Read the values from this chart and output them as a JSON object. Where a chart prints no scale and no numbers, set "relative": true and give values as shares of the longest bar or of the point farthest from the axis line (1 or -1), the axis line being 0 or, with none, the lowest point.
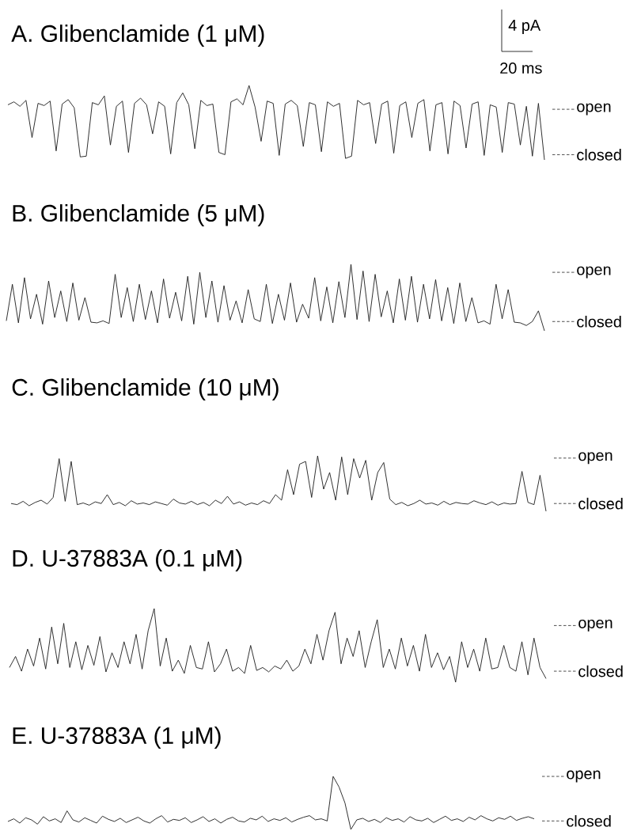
{
  "chart_data": [
    {
      "type": "line",
      "title": "A. Glibenclamide (1 μM)",
      "relative": true,
      "color": "#1a1a1a",
      "categories": [
        null,
        null,
        null,
        null,
        null,
        null,
        null,
        null,
        null,
        null,
        null,
        null,
        null,
        null,
        null,
        null,
        null,
        null,
        null,
        null,
        null,
        null,
        null,
        null,
        null,
        null,
        null,
        null,
        null,
        null,
        null,
        null,
        null,
        null,
        null,
        null,
        null,
        null,
        null,
        null,
        null,
        null,
        null,
        null,
        null,
        null,
        null,
        null,
        null,
        null,
        null,
        null,
        null,
        null,
        null,
        null,
        null,
        null,
        null,
        null,
        null,
        null,
        null,
        null,
        null,
        null,
        null,
        null,
        null,
        null,
        null,
        null,
        null,
        null,
        null,
        null,
        null,
        null,
        null,
        null,
        null,
        null,
        null,
        null,
        null,
        null,
        null,
        null,
        null,
        null
      ],
      "values": [
        0.74,
        0.78,
        0.72,
        0.8,
        0.3,
        0.76,
        0.73,
        0.79,
        0.12,
        0.75,
        0.81,
        0.7,
        0.04,
        0.05,
        0.77,
        0.74,
        0.86,
        0.2,
        0.72,
        0.79,
        0.1,
        0.76,
        0.83,
        0.74,
        0.35,
        0.78,
        0.72,
        0.08,
        0.77,
        0.9,
        0.74,
        0.15,
        0.8,
        0.73,
        0.75,
        0.1,
        0.07,
        0.78,
        0.82,
        0.74,
        1.0,
        0.71,
        0.25,
        0.79,
        0.76,
        0.06,
        0.75,
        0.8,
        0.73,
        0.18,
        0.77,
        0.74,
        0.11,
        0.78,
        0.72,
        0.76,
        0.02,
        0.05,
        0.8,
        0.74,
        0.77,
        0.22,
        0.75,
        0.79,
        0.09,
        0.73,
        0.78,
        0.3,
        0.76,
        0.81,
        0.12,
        0.74,
        0.77,
        0.08,
        0.79,
        0.73,
        0.16,
        0.75,
        0.78,
        0.06,
        0.74,
        0.71,
        0.1,
        0.77,
        0.75,
        0.2,
        0.72,
        0.05,
        0.76,
        0.0
      ],
      "ref_lines": [
        {
          "axis": "y",
          "value": 0.68,
          "label": "open",
          "line_style": "dashed"
        },
        {
          "axis": "y",
          "value": 0.07,
          "label": "closed",
          "line_style": "dashed"
        }
      ],
      "annotations": [
        "4 pA",
        "20 ms"
      ]
    },
    {
      "type": "line",
      "title": "B. Glibenclamide (5 μM)",
      "relative": true,
      "color": "#1a1a1a",
      "categories": [
        null,
        null,
        null,
        null,
        null,
        null,
        null,
        null,
        null,
        null,
        null,
        null,
        null,
        null,
        null,
        null,
        null,
        null,
        null,
        null,
        null,
        null,
        null,
        null,
        null,
        null,
        null,
        null,
        null,
        null,
        null,
        null,
        null,
        null,
        null,
        null,
        null,
        null,
        null,
        null,
        null,
        null,
        null,
        null,
        null,
        null,
        null,
        null,
        null,
        null,
        null,
        null,
        null,
        null,
        null,
        null,
        null,
        null,
        null,
        null,
        null,
        null,
        null,
        null,
        null,
        null,
        null,
        null,
        null,
        null,
        null,
        null,
        null,
        null,
        null,
        null,
        null,
        null,
        null,
        null,
        null,
        null,
        null,
        null,
        null,
        null,
        null,
        null,
        null,
        null
      ],
      "values": [
        0.15,
        0.7,
        0.12,
        0.8,
        0.18,
        0.55,
        0.1,
        0.75,
        0.2,
        0.6,
        0.14,
        0.72,
        0.16,
        0.5,
        0.13,
        0.12,
        0.15,
        0.11,
        0.85,
        0.2,
        0.65,
        0.14,
        0.7,
        0.17,
        0.6,
        0.12,
        0.78,
        0.19,
        0.58,
        0.15,
        0.82,
        0.1,
        0.88,
        0.2,
        0.75,
        0.13,
        0.68,
        0.16,
        0.45,
        0.12,
        0.62,
        0.18,
        0.14,
        0.7,
        0.11,
        0.55,
        0.16,
        0.72,
        0.13,
        0.4,
        0.19,
        0.8,
        0.15,
        0.66,
        0.12,
        0.74,
        0.2,
        1.0,
        0.17,
        0.9,
        0.14,
        0.85,
        0.21,
        0.6,
        0.12,
        0.78,
        0.16,
        0.82,
        0.13,
        0.7,
        0.18,
        0.77,
        0.15,
        0.65,
        0.11,
        0.72,
        0.14,
        0.5,
        0.12,
        0.15,
        0.1,
        0.7,
        0.18,
        0.62,
        0.13,
        0.12,
        0.08,
        0.14,
        0.3,
        0.0
      ],
      "ref_lines": [
        {
          "axis": "y",
          "value": 0.88,
          "label": "open",
          "line_style": "dashed"
        },
        {
          "axis": "y",
          "value": 0.14,
          "label": "closed",
          "line_style": "dashed"
        }
      ]
    },
    {
      "type": "line",
      "title": "C. Glibenclamide (10 μM)",
      "relative": true,
      "color": "#1a1a1a",
      "categories": [
        null,
        null,
        null,
        null,
        null,
        null,
        null,
        null,
        null,
        null,
        null,
        null,
        null,
        null,
        null,
        null,
        null,
        null,
        null,
        null,
        null,
        null,
        null,
        null,
        null,
        null,
        null,
        null,
        null,
        null,
        null,
        null,
        null,
        null,
        null,
        null,
        null,
        null,
        null,
        null,
        null,
        null,
        null,
        null,
        null,
        null,
        null,
        null,
        null,
        null,
        null,
        null,
        null,
        null,
        null,
        null,
        null,
        null,
        null,
        null,
        null,
        null,
        null,
        null,
        null,
        null,
        null,
        null,
        null,
        null,
        null,
        null,
        null,
        null,
        null,
        null,
        null,
        null,
        null,
        null,
        null,
        null,
        null,
        null,
        null,
        null,
        null,
        null,
        null,
        null
      ],
      "values": [
        0.14,
        0.12,
        0.18,
        0.1,
        0.16,
        0.2,
        0.13,
        0.25,
        0.95,
        0.18,
        0.9,
        0.12,
        0.15,
        0.11,
        0.17,
        0.14,
        0.3,
        0.12,
        0.16,
        0.1,
        0.19,
        0.13,
        0.15,
        0.12,
        0.17,
        0.14,
        0.11,
        0.22,
        0.15,
        0.13,
        0.18,
        0.12,
        0.16,
        0.1,
        0.2,
        0.14,
        0.27,
        0.13,
        0.17,
        0.11,
        0.15,
        0.12,
        0.19,
        0.14,
        0.3,
        0.2,
        0.75,
        0.3,
        0.85,
        0.9,
        0.25,
        1.0,
        0.4,
        0.7,
        0.2,
        0.98,
        0.3,
        0.95,
        0.6,
        0.92,
        0.2,
        0.7,
        0.88,
        0.22,
        0.12,
        0.16,
        0.1,
        0.14,
        0.2,
        0.13,
        0.15,
        0.11,
        0.18,
        0.12,
        0.16,
        0.14,
        0.13,
        0.19,
        0.15,
        0.12,
        0.17,
        0.11,
        0.15,
        0.13,
        0.14,
        0.72,
        0.16,
        0.12,
        0.65,
        0.0
      ],
      "ref_lines": [
        {
          "axis": "y",
          "value": 0.96,
          "label": "open",
          "line_style": "dashed"
        },
        {
          "axis": "y",
          "value": 0.14,
          "label": "closed",
          "line_style": "dashed"
        }
      ]
    },
    {
      "type": "line",
      "title": "D. U-37883A (0.1 μM)",
      "relative": true,
      "color": "#1a1a1a",
      "categories": [
        null,
        null,
        null,
        null,
        null,
        null,
        null,
        null,
        null,
        null,
        null,
        null,
        null,
        null,
        null,
        null,
        null,
        null,
        null,
        null,
        null,
        null,
        null,
        null,
        null,
        null,
        null,
        null,
        null,
        null,
        null,
        null,
        null,
        null,
        null,
        null,
        null,
        null,
        null,
        null,
        null,
        null,
        null,
        null,
        null,
        null,
        null,
        null,
        null,
        null,
        null,
        null,
        null,
        null,
        null,
        null,
        null,
        null,
        null,
        null,
        null,
        null,
        null,
        null,
        null,
        null,
        null,
        null,
        null,
        null,
        null,
        null,
        null,
        null,
        null,
        null,
        null,
        null,
        null,
        null,
        null,
        null,
        null,
        null,
        null,
        null,
        null,
        null,
        null,
        null
      ],
      "values": [
        0.2,
        0.35,
        0.15,
        0.45,
        0.22,
        0.6,
        0.18,
        0.75,
        0.25,
        0.8,
        0.2,
        0.55,
        0.17,
        0.5,
        0.23,
        0.62,
        0.14,
        0.4,
        0.2,
        0.55,
        0.25,
        0.65,
        0.18,
        0.7,
        1.0,
        0.22,
        0.6,
        0.15,
        0.3,
        0.12,
        0.5,
        0.2,
        0.18,
        0.55,
        0.14,
        0.25,
        0.45,
        0.15,
        0.2,
        0.12,
        0.5,
        0.16,
        0.2,
        0.14,
        0.22,
        0.18,
        0.3,
        0.15,
        0.22,
        0.45,
        0.25,
        0.65,
        0.3,
        0.7,
        0.95,
        0.25,
        0.6,
        0.35,
        0.7,
        0.2,
        0.55,
        0.85,
        0.2,
        0.45,
        0.18,
        0.6,
        0.22,
        0.5,
        0.15,
        0.65,
        0.2,
        0.4,
        0.17,
        0.35,
        0.0,
        0.55,
        0.2,
        0.45,
        0.15,
        0.6,
        0.18,
        0.2,
        0.5,
        0.2,
        0.15,
        0.55,
        0.1,
        0.6,
        0.2,
        0.05
      ],
      "ref_lines": [
        {
          "axis": "y",
          "value": 0.77,
          "label": "open",
          "line_style": "dashed"
        },
        {
          "axis": "y",
          "value": 0.15,
          "label": "closed",
          "line_style": "dashed"
        }
      ]
    },
    {
      "type": "line",
      "title": "E. U-37883A (1 μM)",
      "relative": true,
      "color": "#1a1a1a",
      "categories": [
        null,
        null,
        null,
        null,
        null,
        null,
        null,
        null,
        null,
        null,
        null,
        null,
        null,
        null,
        null,
        null,
        null,
        null,
        null,
        null,
        null,
        null,
        null,
        null,
        null,
        null,
        null,
        null,
        null,
        null,
        null,
        null,
        null,
        null,
        null,
        null,
        null,
        null,
        null,
        null,
        null,
        null,
        null,
        null,
        null,
        null,
        null,
        null,
        null,
        null,
        null,
        null,
        null,
        null,
        null,
        null,
        null,
        null,
        null,
        null,
        null,
        null,
        null,
        null,
        null,
        null,
        null,
        null,
        null,
        null,
        null,
        null,
        null,
        null,
        null,
        null,
        null,
        null,
        null,
        null,
        null,
        null,
        null,
        null,
        null,
        null,
        null,
        null,
        null,
        null
      ],
      "values": [
        0.15,
        0.2,
        0.12,
        0.22,
        0.18,
        0.1,
        0.24,
        0.16,
        0.2,
        0.13,
        0.35,
        0.18,
        0.14,
        0.22,
        0.17,
        0.12,
        0.25,
        0.19,
        0.15,
        0.21,
        0.13,
        0.18,
        0.23,
        0.16,
        0.12,
        0.2,
        0.26,
        0.14,
        0.19,
        0.17,
        0.22,
        0.13,
        0.18,
        0.24,
        0.15,
        0.2,
        0.12,
        0.19,
        0.23,
        0.16,
        0.14,
        0.21,
        0.18,
        0.25,
        0.15,
        0.2,
        0.17,
        0.22,
        0.14,
        0.19,
        0.23,
        0.26,
        0.18,
        0.2,
        0.16,
        1.0,
        0.8,
        0.5,
        0.0,
        0.18,
        0.21,
        0.15,
        0.19,
        0.13,
        0.22,
        0.17,
        0.2,
        0.14,
        0.24,
        0.18,
        0.16,
        0.21,
        0.13,
        0.19,
        0.25,
        0.17,
        0.2,
        0.15,
        0.23,
        0.18,
        0.26,
        0.2,
        0.16,
        0.22,
        0.19,
        0.25,
        0.17,
        0.21,
        0.24,
        0.2
      ],
      "ref_lines": [
        {
          "axis": "y",
          "value": 1.0,
          "label": "open",
          "line_style": "dashed"
        },
        {
          "axis": "y",
          "value": 0.16,
          "label": "closed",
          "line_style": "dashed"
        }
      ]
    }
  ]
}
